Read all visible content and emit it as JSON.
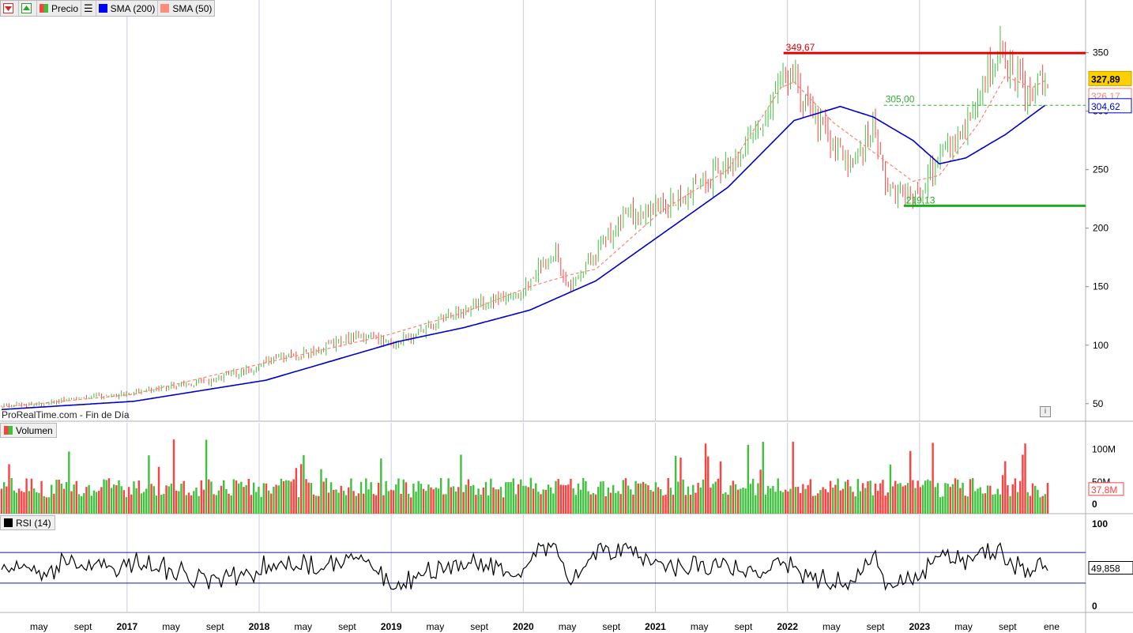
{
  "toolbar": {
    "price_label": "Precio",
    "sma200_label": "SMA (200)",
    "sma50_label": "SMA (50)"
  },
  "volume_panel": {
    "label": "Volumen",
    "last_value": "37,8M",
    "ticks": [
      "100M",
      "50M",
      "0"
    ]
  },
  "rsi_panel": {
    "label": "RSI (14)",
    "last_value": "49,858",
    "ticks": [
      "100",
      "0"
    ],
    "overbought": 70,
    "oversold": 30
  },
  "source_label": "ProRealTime.com - Fin de Día",
  "info_label": "i",
  "colors": {
    "up": "#3ec23e",
    "down": "#ff4040",
    "sma200": "#0000cc",
    "sma50": "#ff8070",
    "resistance": "#e00000",
    "support": "#22aa22"
  },
  "chart_data": {
    "type": "candlestick",
    "price_axis": {
      "ticks": [
        50,
        100,
        150,
        200,
        250,
        300,
        350
      ],
      "ylim": [
        35,
        395
      ]
    },
    "x_labels": [
      "may",
      "sept",
      "2017",
      "may",
      "sept",
      "2018",
      "may",
      "sept",
      "2019",
      "may",
      "sept",
      "2020",
      "may",
      "sept",
      "2021",
      "may",
      "sept",
      "2022",
      "may",
      "sept",
      "2023",
      "may",
      "sept",
      "ene"
    ],
    "last_price": "327,89",
    "sma50_last": "326,17",
    "sma200_last": "304,62",
    "levels": [
      {
        "name": "resistance",
        "value": 349.67,
        "label": "349,67"
      },
      {
        "name": "mid",
        "value": 305.0,
        "label": "305,00"
      },
      {
        "name": "support",
        "value": 219.13,
        "label": "219,13"
      }
    ],
    "price_path": [
      [
        2016.0,
        48
      ],
      [
        2016.3,
        50
      ],
      [
        2016.6,
        55
      ],
      [
        2016.9,
        58
      ],
      [
        2017.0,
        60
      ],
      [
        2017.3,
        65
      ],
      [
        2017.6,
        70
      ],
      [
        2017.9,
        80
      ],
      [
        2018.1,
        90
      ],
      [
        2018.4,
        95
      ],
      [
        2018.7,
        110
      ],
      [
        2018.9,
        103
      ],
      [
        2019.0,
        102
      ],
      [
        2019.3,
        120
      ],
      [
        2019.6,
        135
      ],
      [
        2019.9,
        140
      ],
      [
        2020.1,
        170
      ],
      [
        2020.2,
        180
      ],
      [
        2020.3,
        145
      ],
      [
        2020.5,
        180
      ],
      [
        2020.7,
        210
      ],
      [
        2020.9,
        215
      ],
      [
        2021.0,
        220
      ],
      [
        2021.2,
        230
      ],
      [
        2021.4,
        245
      ],
      [
        2021.6,
        265
      ],
      [
        2021.8,
        295
      ],
      [
        2021.9,
        335
      ],
      [
        2022.0,
        330
      ],
      [
        2022.1,
        300
      ],
      [
        2022.2,
        285
      ],
      [
        2022.4,
        255
      ],
      [
        2022.5,
        265
      ],
      [
        2022.6,
        285
      ],
      [
        2022.7,
        240
      ],
      [
        2022.8,
        230
      ],
      [
        2022.9,
        225
      ],
      [
        2023.0,
        240
      ],
      [
        2023.1,
        260
      ],
      [
        2023.3,
        285
      ],
      [
        2023.4,
        320
      ],
      [
        2023.5,
        340
      ],
      [
        2023.55,
        355
      ],
      [
        2023.6,
        340
      ],
      [
        2023.7,
        330
      ],
      [
        2023.75,
        315
      ],
      [
        2023.8,
        318
      ],
      [
        2023.85,
        330
      ],
      [
        2023.9,
        328
      ]
    ],
    "sma50_path": [
      [
        2016.0,
        47
      ],
      [
        2017.0,
        58
      ],
      [
        2018.0,
        85
      ],
      [
        2018.9,
        108
      ],
      [
        2019.5,
        128
      ],
      [
        2020.0,
        150
      ],
      [
        2020.3,
        160
      ],
      [
        2020.5,
        165
      ],
      [
        2021.0,
        215
      ],
      [
        2021.5,
        250
      ],
      [
        2021.9,
        320
      ],
      [
        2022.0,
        325
      ],
      [
        2022.3,
        290
      ],
      [
        2022.6,
        265
      ],
      [
        2022.9,
        240
      ],
      [
        2023.1,
        245
      ],
      [
        2023.4,
        290
      ],
      [
        2023.6,
        330
      ],
      [
        2023.8,
        320
      ],
      [
        2023.9,
        326
      ]
    ],
    "sma200_path": [
      [
        2016.0,
        45
      ],
      [
        2017.0,
        52
      ],
      [
        2018.0,
        70
      ],
      [
        2019.0,
        103
      ],
      [
        2019.5,
        115
      ],
      [
        2020.0,
        130
      ],
      [
        2020.5,
        155
      ],
      [
        2021.0,
        195
      ],
      [
        2021.5,
        235
      ],
      [
        2022.0,
        292
      ],
      [
        2022.35,
        304
      ],
      [
        2022.6,
        295
      ],
      [
        2022.9,
        275
      ],
      [
        2023.1,
        255
      ],
      [
        2023.3,
        260
      ],
      [
        2023.6,
        280
      ],
      [
        2023.9,
        305
      ]
    ],
    "volume_ylim": [
      0,
      120
    ],
    "rsi_ylim": [
      0,
      100
    ]
  }
}
